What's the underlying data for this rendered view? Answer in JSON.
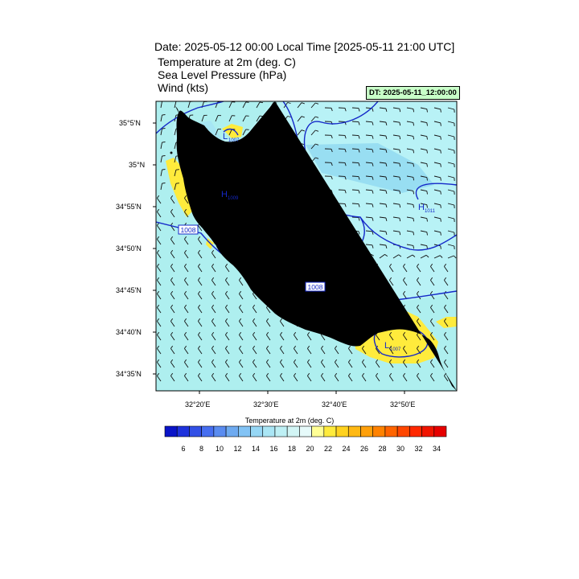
{
  "header": {
    "date_line": "Date: 2025-05-12  00:00 Local Time [2025-05-11  21:00 UTC]",
    "line1": "Temperature at 2m   (deg. C)",
    "line2": "Sea Level Pressure   (hPa)",
    "line3": "Wind   (kts)",
    "dt_label": "DT: 2025-05-11_12:00:00",
    "dt_box_color": "#c8ffc8"
  },
  "map": {
    "lat_labels": [
      "35°5'N",
      "35°N",
      "34°55'N",
      "34°50'N",
      "34°45'N",
      "34°40'N",
      "34°35'N"
    ],
    "lon_labels": [
      "32°20'E",
      "32°30'E",
      "32°40'E",
      "32°50'E"
    ],
    "isobar_labels": [
      {
        "text": "1008",
        "type": "box"
      },
      {
        "text": "1008",
        "type": "box"
      }
    ],
    "pressure_centers": [
      {
        "symbol": "L",
        "value": "1007"
      },
      {
        "symbol": "H",
        "value": "1009"
      },
      {
        "symbol": "H",
        "value": "1011"
      },
      {
        "symbol": "L",
        "value": "1007"
      }
    ],
    "colors": {
      "sea_cyan": "#aeefef",
      "land_cyan": "#b4f0f8",
      "cool_blue": "#96dcf0",
      "warm_yellow": "#ffeb3c",
      "isobar": "#1428c8",
      "coast": "#111111"
    }
  },
  "colorbar": {
    "title": "Temperature at 2m  (deg. C)",
    "labels": [
      "6",
      "8",
      "10",
      "12",
      "14",
      "16",
      "18",
      "20",
      "22",
      "24",
      "26",
      "28",
      "30",
      "32",
      "34"
    ],
    "colors": [
      "#0a14c8",
      "#1e32dc",
      "#3250e6",
      "#466ef0",
      "#5a8cf0",
      "#6eaaf0",
      "#82c3f5",
      "#96d7f5",
      "#aae6f5",
      "#bef0f5",
      "#d2f5f5",
      "#e6fafa",
      "#ffff96",
      "#ffeb3c",
      "#ffd21e",
      "#ffb914",
      "#ffa00a",
      "#ff8200",
      "#ff6400",
      "#ff4600",
      "#ff2800",
      "#f01400",
      "#e60000"
    ]
  }
}
